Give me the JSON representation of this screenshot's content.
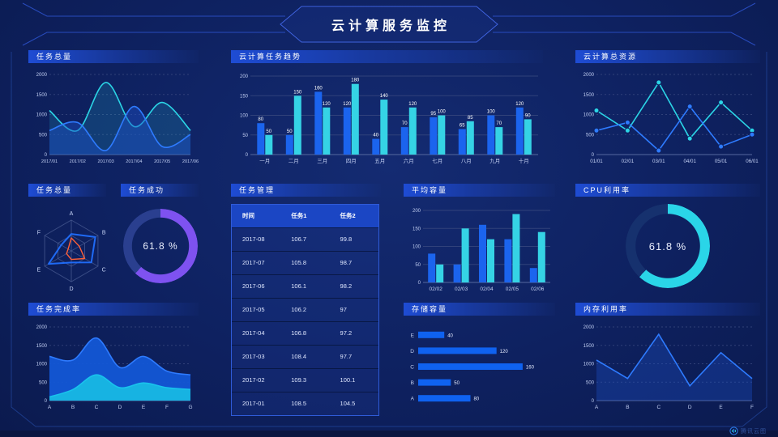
{
  "header": {
    "title": "云计算服务监控"
  },
  "watermark": {
    "label": "腾讯云图"
  },
  "palette": {
    "blue": "#1b64ee",
    "cyan": "#35d3e5",
    "line_blue": "#2e7bff",
    "line_cyan": "#2bd5e6",
    "purple": "#7e52f0",
    "orange": "#ff6038",
    "grid": "#39497f",
    "axis_text": "#c2cff2"
  },
  "panels": {
    "tasks_total_line": {
      "title": "任务总量"
    },
    "cloud_task_trend": {
      "title": "云计算任务趋势"
    },
    "cloud_total_resources": {
      "title": "云计算总资源"
    },
    "tasks_total_radar": {
      "title": "任务总量"
    },
    "task_success": {
      "title": "任务成功",
      "display": "61.8 %"
    },
    "task_management": {
      "title": "任务管理"
    },
    "average_capacity": {
      "title": "平均容量"
    },
    "cpu_usage": {
      "title": "CPU利用率",
      "display": "61.8 %"
    },
    "task_completion": {
      "title": "任务完成率"
    },
    "storage_capacity": {
      "title": "存储容量"
    },
    "memory_usage": {
      "title": "内存利用率"
    }
  },
  "chart_data": [
    {
      "id": "tasks_total_line",
      "type": "line",
      "smooth": true,
      "grid": "dashed",
      "title": "任务总量",
      "x": [
        "2017/01",
        "2017/02",
        "2017/03",
        "2017/04",
        "2017/05",
        "2017/06"
      ],
      "ylim": [
        0,
        2000
      ],
      "ytick": 500,
      "xfont": 5.6,
      "series": [
        {
          "name": "series-cyan",
          "color": "#2bd5e6",
          "area": true,
          "fill": "#2bd5e6",
          "fill_opacity": 0.16,
          "values": [
            1100,
            600,
            1800,
            700,
            1300,
            600
          ]
        },
        {
          "name": "series-blue",
          "color": "#2e7bff",
          "area": true,
          "fill": "#1c50c8",
          "fill_opacity": 0.45,
          "values": [
            600,
            800,
            100,
            1200,
            200,
            500
          ]
        }
      ]
    },
    {
      "id": "cloud_task_trend",
      "type": "bar",
      "labels": true,
      "title": "云计算任务趋势",
      "categories": [
        "一月",
        "二月",
        "三月",
        "四月",
        "五月",
        "六月",
        "七月",
        "八月",
        "九月",
        "十月"
      ],
      "ylim": [
        0,
        200
      ],
      "ytick": 50,
      "series": [
        {
          "name": "series-blue",
          "color": "#1b64ee",
          "values": [
            80,
            50,
            160,
            120,
            40,
            70,
            95,
            65,
            100,
            120
          ]
        },
        {
          "name": "series-cyan",
          "color": "#35d3e5",
          "values": [
            50,
            150,
            120,
            180,
            140,
            120,
            100,
            85,
            70,
            90
          ]
        }
      ]
    },
    {
      "id": "cloud_total_resources",
      "type": "line",
      "smooth": false,
      "markers": true,
      "grid": "dashed",
      "title": "云计算总资源",
      "x": [
        "01/01",
        "02/01",
        "03/01",
        "04/01",
        "05/01",
        "06/01"
      ],
      "ylim": [
        0,
        2000
      ],
      "ytick": 500,
      "xfont": 6.2,
      "series": [
        {
          "name": "series-cyan",
          "color": "#2bd5e6",
          "values": [
            1100,
            600,
            1800,
            400,
            1300,
            600
          ]
        },
        {
          "name": "series-blue",
          "color": "#2e7bff",
          "values": [
            600,
            800,
            100,
            1200,
            200,
            500
          ]
        }
      ]
    },
    {
      "id": "tasks_total_radar",
      "type": "radar",
      "title": "任务总量",
      "axes": [
        "A",
        "B",
        "C",
        "D",
        "E",
        "F"
      ],
      "max": 100,
      "series": [
        {
          "name": "series-blue",
          "color": "#1f6af5",
          "width": 2,
          "values": [
            55,
            90,
            75,
            38,
            85,
            38
          ]
        },
        {
          "name": "series-orange",
          "color": "#ff6038",
          "width": 1.4,
          "values": [
            42,
            30,
            50,
            28,
            18,
            12
          ]
        }
      ]
    },
    {
      "id": "task_success",
      "type": "pie",
      "hole": true,
      "title": "任务成功",
      "value": 61.8,
      "label": "61.8 %",
      "color": "#7e52f0",
      "track": "#2a3f8f"
    },
    {
      "id": "task_management",
      "type": "table",
      "title": "任务管理",
      "columns": [
        "时间",
        "任务1",
        "任务2"
      ],
      "rows": [
        [
          "2017-08",
          "106.7",
          "99.8"
        ],
        [
          "2017-07",
          "105.8",
          "98.7"
        ],
        [
          "2017-06",
          "106.1",
          "98.2"
        ],
        [
          "2017-05",
          "106.2",
          "97"
        ],
        [
          "2017-04",
          "106.8",
          "97.2"
        ],
        [
          "2017-03",
          "108.4",
          "97.7"
        ],
        [
          "2017-02",
          "109.3",
          "100.1"
        ],
        [
          "2017-01",
          "108.5",
          "104.5"
        ]
      ]
    },
    {
      "id": "average_capacity",
      "type": "bar",
      "labels": false,
      "title": "平均容量",
      "categories": [
        "02/02",
        "02/03",
        "02/04",
        "02/05",
        "02/06"
      ],
      "ylim": [
        0,
        200
      ],
      "ytick": 50,
      "series": [
        {
          "name": "series-blue",
          "color": "#1b64ee",
          "values": [
            80,
            50,
            160,
            120,
            40
          ]
        },
        {
          "name": "series-cyan",
          "color": "#35d3e5",
          "values": [
            50,
            150,
            120,
            190,
            140
          ]
        }
      ]
    },
    {
      "id": "storage_capacity",
      "type": "bar",
      "horizontal": true,
      "title": "存储容量",
      "categories": [
        "E",
        "D",
        "C",
        "B",
        "A"
      ],
      "values": [
        40,
        120,
        160,
        50,
        80
      ],
      "xmax": 175,
      "color": "#0f62f0"
    },
    {
      "id": "cpu_usage",
      "type": "pie",
      "hole": true,
      "title": "CPU利用率",
      "value": 61.8,
      "label": "61.8 %",
      "color": "#2ad5e8",
      "track": "#16316e"
    },
    {
      "id": "memory_usage",
      "type": "line",
      "smooth": false,
      "grid": "dashed",
      "title": "内存利用率",
      "x": [
        "A",
        "B",
        "C",
        "D",
        "E",
        "F"
      ],
      "ylim": [
        0,
        2000
      ],
      "ytick": 500,
      "xfont": 6.5,
      "series": [
        {
          "name": "series-blue",
          "color": "#2e7bff",
          "area": true,
          "fill": "#1c50c8",
          "fill_opacity": 0.35,
          "values": [
            1100,
            600,
            1800,
            400,
            1300,
            600
          ]
        }
      ]
    },
    {
      "id": "task_completion",
      "type": "area",
      "smooth": true,
      "grid": "dashed",
      "title": "任务完成率",
      "x": [
        "A",
        "B",
        "C",
        "D",
        "E",
        "F",
        "G"
      ],
      "ylim": [
        0,
        2000
      ],
      "ytick": 500,
      "xfont": 6.5,
      "series": [
        {
          "name": "series-blue",
          "color": "#2e7bff",
          "area": true,
          "fill": "#1357d6",
          "fill_opacity": 0.95,
          "values": [
            1200,
            1100,
            1700,
            900,
            1200,
            800,
            700
          ]
        },
        {
          "name": "series-cyan",
          "color": "#19c3ec",
          "area": true,
          "fill": "#17b3e2",
          "fill_opacity": 1,
          "values": [
            100,
            300,
            700,
            350,
            480,
            350,
            300
          ]
        }
      ]
    }
  ]
}
